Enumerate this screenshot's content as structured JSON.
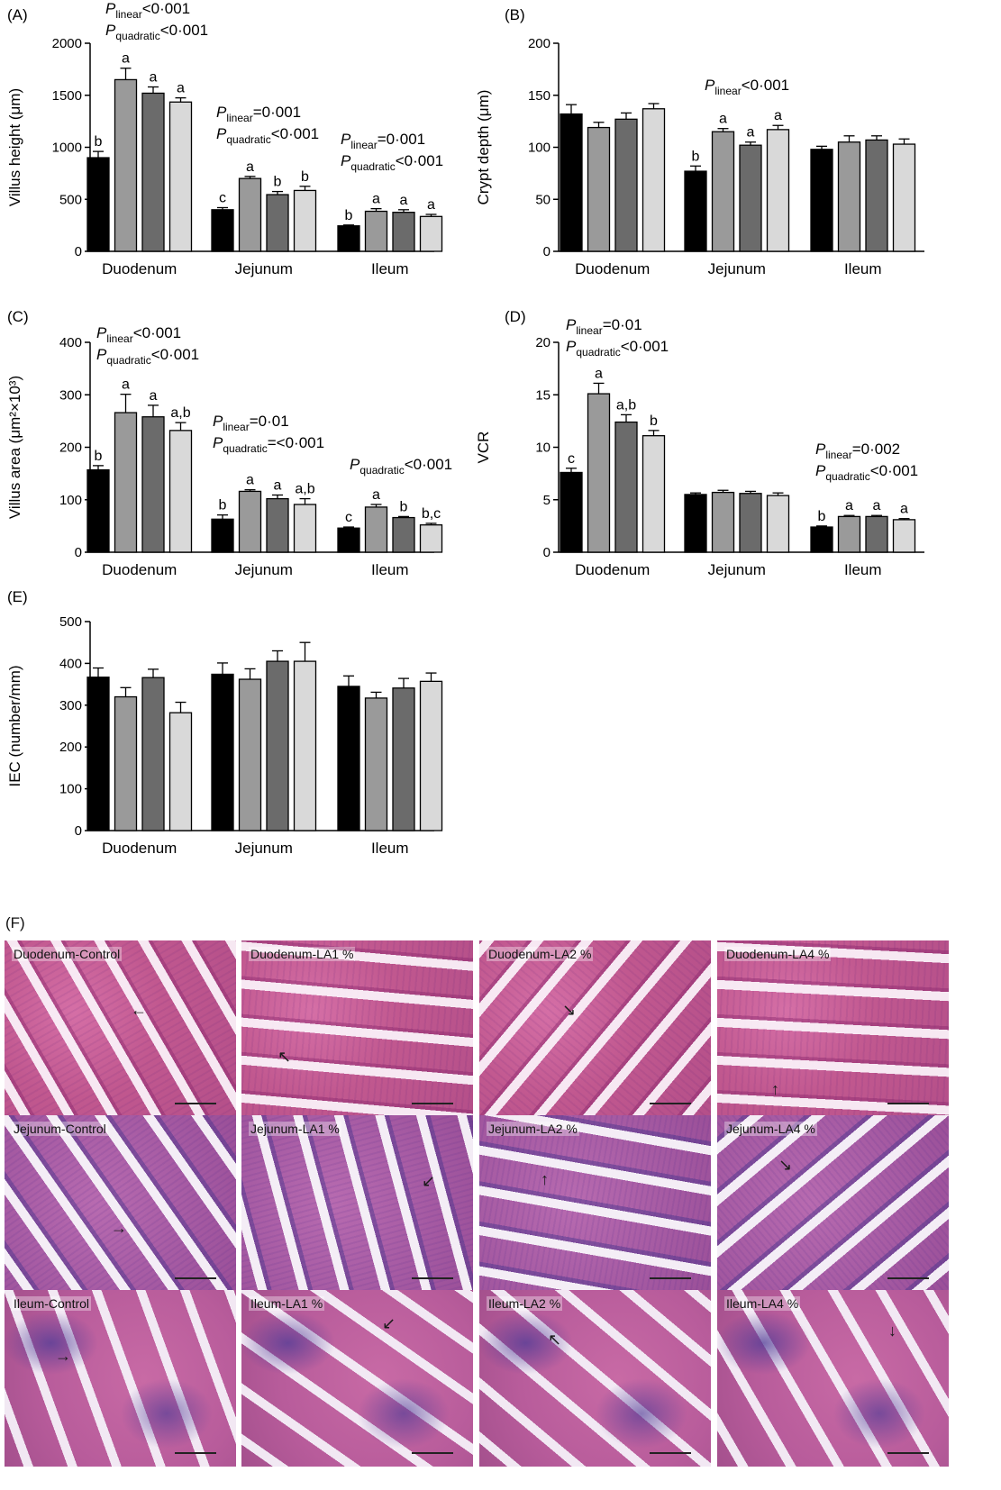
{
  "chart_data": [
    {
      "type": "bar",
      "panel": "(A)",
      "ylabel": "Villus height (μm)",
      "ylim": [
        0,
        2000
      ],
      "yticks": [
        0,
        500,
        1000,
        1500,
        2000
      ],
      "categories": [
        "Duodenum",
        "Jejunum",
        "Ileum"
      ],
      "series": [
        {
          "values": [
            900,
            400,
            245
          ],
          "errors": [
            60,
            20,
            8
          ]
        },
        {
          "values": [
            1650,
            700,
            385
          ],
          "errors": [
            110,
            20,
            25
          ]
        },
        {
          "values": [
            1520,
            545,
            375
          ],
          "errors": [
            60,
            30,
            25
          ]
        },
        {
          "values": [
            1435,
            585,
            335
          ],
          "errors": [
            40,
            40,
            20
          ]
        }
      ],
      "letters": [
        [
          "b",
          "a",
          "a",
          "a"
        ],
        [
          "c",
          "a",
          "b",
          "b"
        ],
        [
          "b",
          "a",
          "a",
          "a"
        ]
      ],
      "stats": [
        [
          "P|linear|<0·001",
          "P|quadratic|<0·001"
        ],
        [
          "P|linear|=0·001",
          "P|quadratic|<0·001"
        ],
        [
          "P|linear|=0·001",
          "P|quadratic|<0·001"
        ]
      ]
    },
    {
      "type": "bar",
      "panel": "(B)",
      "ylabel": "Crypt depth (μm)",
      "ylim": [
        0,
        200
      ],
      "yticks": [
        0,
        50,
        100,
        150,
        200
      ],
      "categories": [
        "Duodenum",
        "Jejunum",
        "Ileum"
      ],
      "series": [
        {
          "values": [
            132,
            77,
            98
          ],
          "errors": [
            9,
            5,
            3
          ]
        },
        {
          "values": [
            119,
            115,
            105
          ],
          "errors": [
            5,
            3,
            6
          ]
        },
        {
          "values": [
            127,
            102,
            107
          ],
          "errors": [
            6,
            3,
            4
          ]
        },
        {
          "values": [
            137,
            117,
            103
          ],
          "errors": [
            5,
            4,
            5
          ]
        }
      ],
      "letters": [
        [
          "",
          "",
          "",
          ""
        ],
        [
          "b",
          "a",
          "a",
          "a"
        ],
        [
          "",
          "",
          "",
          ""
        ]
      ],
      "stats": [
        [],
        [
          "P|linear|<0·001"
        ],
        []
      ]
    },
    {
      "type": "bar",
      "panel": "(C)",
      "ylabel": "Villus area (μm²×10³)",
      "ylim": [
        0,
        400
      ],
      "yticks": [
        0,
        100,
        200,
        300,
        400
      ],
      "categories": [
        "Duodenum",
        "Jejunum",
        "Ileum"
      ],
      "series": [
        {
          "values": [
            157,
            63,
            46
          ],
          "errors": [
            8,
            8,
            2
          ]
        },
        {
          "values": [
            266,
            116,
            86
          ],
          "errors": [
            35,
            3,
            5
          ]
        },
        {
          "values": [
            258,
            102,
            66
          ],
          "errors": [
            22,
            7,
            2
          ]
        },
        {
          "values": [
            232,
            91,
            52
          ],
          "errors": [
            15,
            11,
            3
          ]
        }
      ],
      "letters": [
        [
          "b",
          "a",
          "a",
          "a,b"
        ],
        [
          "b",
          "a",
          "a",
          "a,b"
        ],
        [
          "c",
          "a",
          "b",
          "b,c"
        ]
      ],
      "stats": [
        [
          "P|linear|<0·001",
          "P|quadratic|<0·001"
        ],
        [
          "P|linear|=0·01",
          "P|quadratic|=<0·001"
        ],
        [
          "P|quadratic|<0·001"
        ]
      ]
    },
    {
      "type": "bar",
      "panel": "(D)",
      "ylabel": "VCR",
      "ylim": [
        0,
        20
      ],
      "yticks": [
        0,
        5,
        10,
        15,
        20
      ],
      "categories": [
        "Duodenum",
        "Jejunum",
        "Ileum"
      ],
      "series": [
        {
          "values": [
            7.6,
            5.5,
            2.4
          ],
          "errors": [
            0.4,
            0.15,
            0.1
          ]
        },
        {
          "values": [
            15.1,
            5.7,
            3.4
          ],
          "errors": [
            1.0,
            0.2,
            0.1
          ]
        },
        {
          "values": [
            12.4,
            5.6,
            3.4
          ],
          "errors": [
            0.7,
            0.2,
            0.1
          ]
        },
        {
          "values": [
            11.1,
            5.4,
            3.1
          ],
          "errors": [
            0.5,
            0.25,
            0.1
          ]
        }
      ],
      "letters": [
        [
          "c",
          "a",
          "a,b",
          "b"
        ],
        [
          "",
          "",
          "",
          ""
        ],
        [
          "b",
          "a",
          "a",
          "a"
        ]
      ],
      "stats": [
        [
          "P|linear|=0·01",
          "P|quadratic|<0·001"
        ],
        [],
        [
          "P|linear|=0·002",
          "P|quadratic|<0·001"
        ]
      ]
    },
    {
      "type": "bar",
      "panel": "(E)",
      "ylabel": "IEC (number/mm)",
      "ylim": [
        0,
        500
      ],
      "yticks": [
        0,
        100,
        200,
        300,
        400,
        500
      ],
      "categories": [
        "Duodenum",
        "Jejunum",
        "Ileum"
      ],
      "series": [
        {
          "values": [
            367,
            374,
            345
          ],
          "errors": [
            22,
            27,
            25
          ]
        },
        {
          "values": [
            320,
            362,
            317
          ],
          "errors": [
            22,
            25,
            14
          ]
        },
        {
          "values": [
            366,
            405,
            341
          ],
          "errors": [
            20,
            25,
            23
          ]
        },
        {
          "values": [
            282,
            405,
            357
          ],
          "errors": [
            25,
            45,
            20
          ]
        }
      ],
      "letters": [
        [
          "",
          "",
          "",
          ""
        ],
        [
          "",
          "",
          "",
          ""
        ],
        [
          "",
          "",
          "",
          ""
        ]
      ],
      "stats": [
        [],
        [],
        []
      ]
    }
  ],
  "series_colors": [
    "#000000",
    "#9a9a9a",
    "#6b6b6b",
    "#d9d9d9"
  ],
  "histology": {
    "panel": "(F)",
    "tiles": [
      [
        "Duodenum-Control",
        "Duodenum-LA1 %",
        "Duodenum-LA2 %",
        "Duodenum-LA4 %"
      ],
      [
        "Jejunum-Control",
        "Jejunum-LA1 %",
        "Jejunum-LA2 %",
        "Jejunum-LA4 %"
      ],
      [
        "Ileum-Control",
        "Ileum-LA1 %",
        "Ileum-LA2 %",
        "Ileum-LA4 %"
      ]
    ]
  }
}
